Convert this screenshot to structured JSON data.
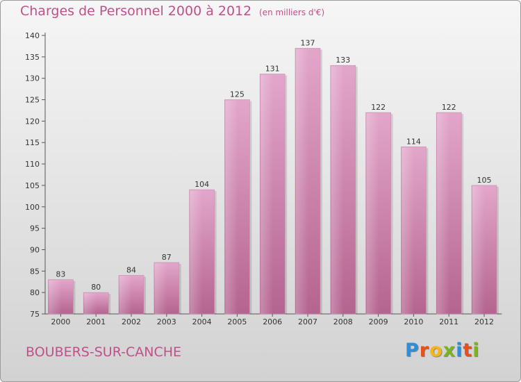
{
  "header": {
    "title": "Charges de Personnel 2000 à 2012",
    "subtitle": "(en milliers d'€)"
  },
  "footer": {
    "commune": "BOUBERS-SUR-CANCHE",
    "logo_letters": [
      "P",
      "r",
      "o",
      "x",
      "i",
      "t",
      "i"
    ],
    "logo_colors": [
      "#2e8fd6",
      "#e94f1b",
      "#f3b51b",
      "#7ab51d",
      "#2e8fd6",
      "#e94f1b",
      "#7ab51d"
    ]
  },
  "colors": {
    "bar_light": "#e3a6cb",
    "bar_dark": "#b4648f",
    "axis": "#555555"
  },
  "chart_data": {
    "type": "bar",
    "title": "Charges de Personnel 2000 à 2012",
    "subtitle": "(en milliers d'€)",
    "categories": [
      "2000",
      "2001",
      "2002",
      "2003",
      "2004",
      "2005",
      "2006",
      "2007",
      "2008",
      "2009",
      "2010",
      "2011",
      "2012"
    ],
    "values": [
      83,
      80,
      84,
      87,
      104,
      125,
      131,
      137,
      133,
      122,
      114,
      122,
      105
    ],
    "ylim": [
      75,
      140
    ],
    "yticks": [
      75,
      80,
      85,
      90,
      95,
      100,
      105,
      110,
      115,
      120,
      125,
      130,
      135,
      140
    ],
    "xlabel": "",
    "ylabel": "",
    "grid": false,
    "legend": "none"
  }
}
